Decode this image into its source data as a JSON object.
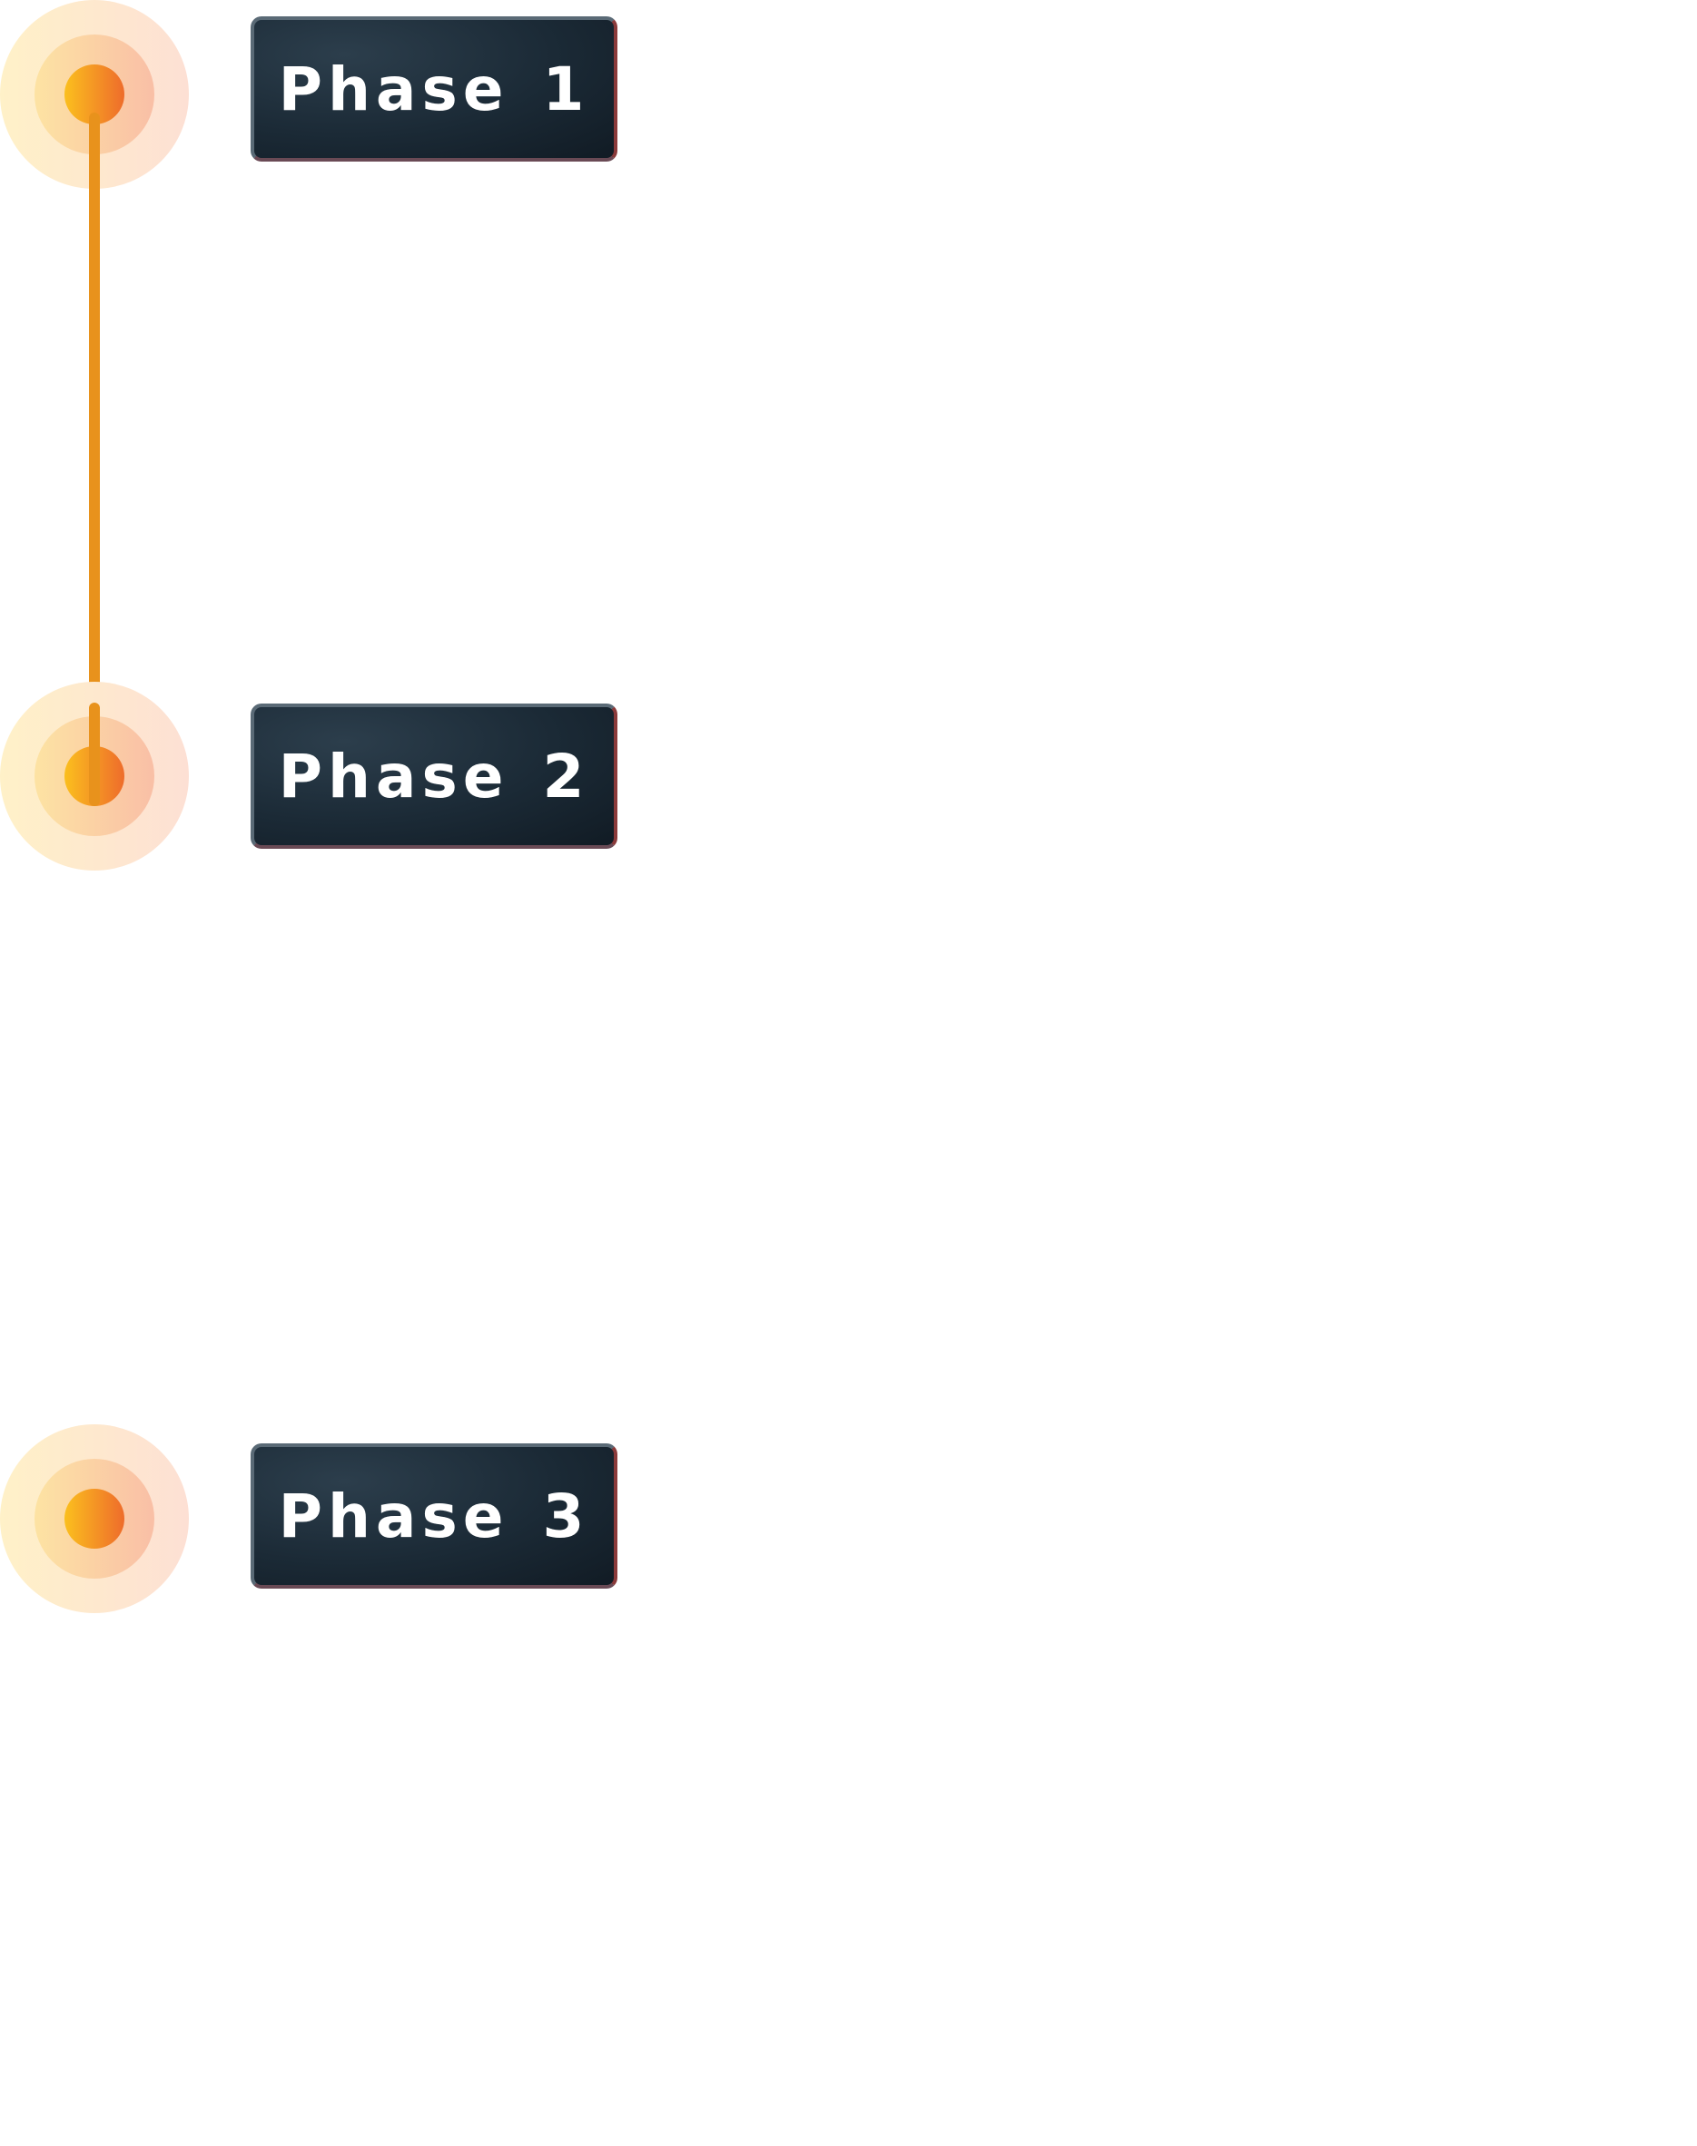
{
  "phases": [
    {
      "label": "Phase 1"
    },
    {
      "label": "Phase 2"
    },
    {
      "label": "Phase 3"
    }
  ],
  "connectors": [
    {
      "from": "Phase 1",
      "to": "Phase 2",
      "style": "solid"
    },
    {
      "from": "Phase 2",
      "to": "Phase 3",
      "style": "dashed"
    }
  ],
  "colors": {
    "line_solid": "#e8921c",
    "line_dashed_top": "#fbe3c6",
    "line_dashed_bottom": "#f6d2d2",
    "dot_start": "#fbbf1e",
    "dot_end": "#ee6c2b",
    "halo_outer": "#fde7cf",
    "halo_inner": "#fbc8a0",
    "label_bg": "#1b2a36",
    "label_text": "#ffffff"
  }
}
